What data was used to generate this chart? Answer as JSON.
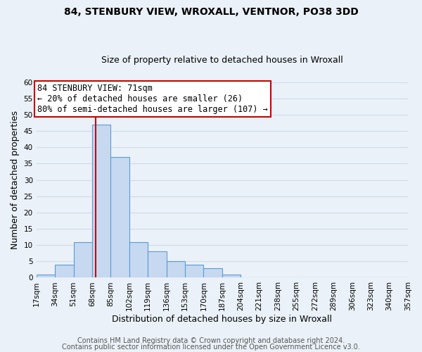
{
  "title": "84, STENBURY VIEW, WROXALL, VENTNOR, PO38 3DD",
  "subtitle": "Size of property relative to detached houses in Wroxall",
  "xlabel": "Distribution of detached houses by size in Wroxall",
  "ylabel": "Number of detached properties",
  "bin_edges": [
    17,
    34,
    51,
    68,
    85,
    102,
    119,
    136,
    153,
    170,
    187,
    204,
    221,
    238,
    255,
    272,
    289,
    306,
    323,
    340,
    357
  ],
  "bin_labels": [
    "17sqm",
    "34sqm",
    "51sqm",
    "68sqm",
    "85sqm",
    "102sqm",
    "119sqm",
    "136sqm",
    "153sqm",
    "170sqm",
    "187sqm",
    "204sqm",
    "221sqm",
    "238sqm",
    "255sqm",
    "272sqm",
    "289sqm",
    "306sqm",
    "323sqm",
    "340sqm",
    "357sqm"
  ],
  "counts": [
    1,
    4,
    11,
    47,
    37,
    11,
    8,
    5,
    4,
    3,
    1,
    0,
    0,
    0,
    0,
    0,
    0,
    0,
    0,
    0
  ],
  "bar_color": "#c6d9f0",
  "bar_edge_color": "#5b9bd5",
  "property_line_x": 71,
  "property_line_color": "#cc0000",
  "annotation_line1": "84 STENBURY VIEW: 71sqm",
  "annotation_line2": "← 20% of detached houses are smaller (26)",
  "annotation_line3": "80% of semi-detached houses are larger (107) →",
  "annotation_box_color": "#ffffff",
  "annotation_box_edge": "#cc0000",
  "ylim": [
    0,
    60
  ],
  "yticks": [
    0,
    5,
    10,
    15,
    20,
    25,
    30,
    35,
    40,
    45,
    50,
    55,
    60
  ],
  "footer1": "Contains HM Land Registry data © Crown copyright and database right 2024.",
  "footer2": "Contains public sector information licensed under the Open Government Licence v3.0.",
  "title_fontsize": 10,
  "subtitle_fontsize": 9,
  "axis_label_fontsize": 9,
  "tick_fontsize": 7.5,
  "annotation_fontsize": 8.5,
  "footer_fontsize": 7,
  "grid_color": "#d0dce8",
  "bg_color": "#eaf1f8",
  "xlim_min": 17,
  "xlim_max": 357
}
